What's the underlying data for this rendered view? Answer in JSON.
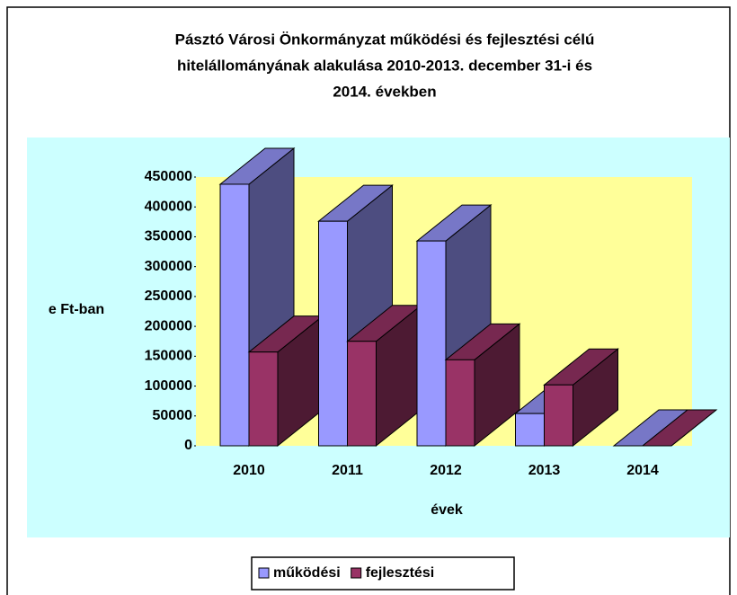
{
  "chart_data": {
    "type": "bar3d",
    "title": [
      "Pásztó Városi Önkormányzat működési és fejlesztési célú",
      "hitelállományának alakulása 2010-2013. december 31-i és",
      "2014. években"
    ],
    "y_label": "e Ft-ban",
    "x_label": "évek",
    "categories": [
      "2010",
      "2011",
      "2012",
      "2013",
      "2014"
    ],
    "series": [
      {
        "name": "működési",
        "color": "#9999ff",
        "values": [
          438000,
          376000,
          343000,
          54000,
          0
        ]
      },
      {
        "name": "fejlesztési",
        "color": "#993366",
        "values": [
          157000,
          175000,
          144000,
          102000,
          0
        ]
      }
    ],
    "ylim": [
      0,
      450000
    ],
    "yticks": [
      0,
      50000,
      100000,
      150000,
      200000,
      250000,
      300000,
      350000,
      400000,
      450000
    ],
    "legend": "bottom"
  }
}
